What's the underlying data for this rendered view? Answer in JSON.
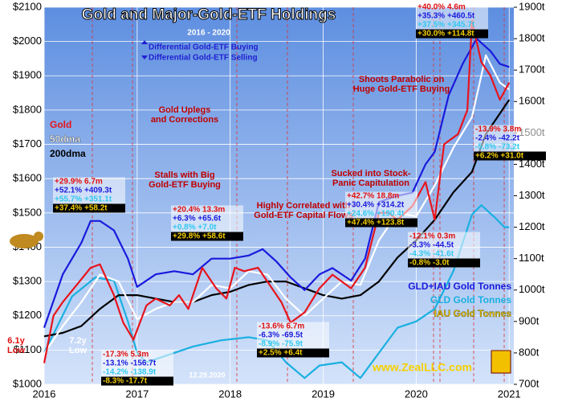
{
  "chart_data": {
    "type": "line",
    "title": "Gold and Major-Gold-ETF Holdings",
    "subtitle": "2016 - 2020",
    "grid": true,
    "xlim": [
      2016,
      2021.05
    ],
    "xticks": [
      2016,
      2017,
      2018,
      2019,
      2020,
      2021
    ],
    "ylim": [
      1000,
      2100
    ],
    "yticks": [
      {
        "value": 1000,
        "label": "$1000"
      },
      {
        "value": 1100,
        "label": "$1100"
      },
      {
        "value": 1200,
        "label": "$1200"
      },
      {
        "value": 1300,
        "label": "$1300"
      },
      {
        "value": 1400,
        "label": "$1400"
      },
      {
        "value": 1500,
        "label": "$1500"
      },
      {
        "value": 1600,
        "label": "$1600"
      },
      {
        "value": 1700,
        "label": "$1700"
      },
      {
        "value": 1800,
        "label": "$1800"
      },
      {
        "value": 1900,
        "label": "$1900"
      },
      {
        "value": 2000,
        "label": "$2000"
      },
      {
        "value": 2100,
        "label": "$2100"
      }
    ],
    "y2lim": [
      700,
      1900
    ],
    "y2ticks": [
      {
        "value": 700,
        "label": "700t"
      },
      {
        "value": 800,
        "label": "800t"
      },
      {
        "value": 900,
        "label": "900t"
      },
      {
        "value": 1000,
        "label": "1000t"
      },
      {
        "value": 1100,
        "label": "1100t"
      },
      {
        "value": 1200,
        "label": "1200t"
      },
      {
        "value": 1300,
        "label": "1300t"
      },
      {
        "value": 1400,
        "label": "1400t"
      },
      {
        "value": 1500,
        "label": "1500t"
      },
      {
        "value": 1600,
        "label": "1600t"
      },
      {
        "value": 1700,
        "label": "1700t"
      },
      {
        "value": 1800,
        "label": "1800t"
      },
      {
        "value": 1900,
        "label": "1900t"
      }
    ],
    "series": [
      {
        "name": "GLD Gold Tonnes",
        "color": "#1ab0e0",
        "axis": "y2",
        "x": [
          2016.0,
          2016.3,
          2016.55,
          2016.75,
          2016.9,
          2017.0,
          2017.1,
          2017.3,
          2017.6,
          2017.9,
          2018.2,
          2018.4,
          2018.6,
          2018.8,
          2018.96,
          2019.2,
          2019.4,
          2019.6,
          2019.8,
          2020.0,
          2020.2,
          2020.4,
          2020.6,
          2020.7,
          2020.85,
          2020.95,
          2021.0
        ],
        "values": [
          800,
          980,
          1040,
          1030,
          900,
          800,
          770,
          790,
          820,
          840,
          850,
          840,
          770,
          720,
          760,
          770,
          720,
          800,
          880,
          900,
          940,
          1060,
          1240,
          1270,
          1230,
          1200,
          1200
        ]
      },
      {
        "name": "200dma",
        "color": "#000000",
        "x": [
          2016.0,
          2016.2,
          2016.4,
          2016.6,
          2016.8,
          2017.0,
          2017.2,
          2017.4,
          2017.6,
          2017.8,
          2018.0,
          2018.2,
          2018.4,
          2018.6,
          2018.8,
          2019.0,
          2019.2,
          2019.4,
          2019.6,
          2019.8,
          2020.0,
          2020.2,
          2020.4,
          2020.6,
          2020.75,
          2020.9,
          2021.0
        ],
        "values": [
          1140,
          1150,
          1170,
          1220,
          1260,
          1260,
          1250,
          1240,
          1240,
          1260,
          1270,
          1290,
          1300,
          1300,
          1280,
          1260,
          1250,
          1260,
          1300,
          1370,
          1420,
          1480,
          1560,
          1620,
          1730,
          1790,
          1830
        ]
      },
      {
        "name": "50dma",
        "color": "#ffffff",
        "x": [
          2016.0,
          2016.2,
          2016.4,
          2016.6,
          2016.8,
          2017.0,
          2017.2,
          2017.4,
          2017.6,
          2017.8,
          2018.0,
          2018.2,
          2018.4,
          2018.6,
          2018.8,
          2019.0,
          2019.2,
          2019.4,
          2019.6,
          2019.8,
          2020.0,
          2020.2,
          2020.4,
          2020.6,
          2020.75,
          2020.9,
          2021.0
        ],
        "values": [
          1090,
          1170,
          1240,
          1320,
          1300,
          1190,
          1220,
          1240,
          1240,
          1290,
          1280,
          1330,
          1320,
          1250,
          1200,
          1250,
          1300,
          1290,
          1420,
          1500,
          1490,
          1580,
          1690,
          1780,
          1960,
          1880,
          1860
        ]
      },
      {
        "name": "GLD+IAU Gold Tonnes",
        "color": "#1a1adc",
        "axis": "y2",
        "x": [
          2016.0,
          2016.2,
          2016.4,
          2016.5,
          2016.6,
          2016.75,
          2016.9,
          2017.0,
          2017.2,
          2017.4,
          2017.6,
          2017.8,
          2018.0,
          2018.2,
          2018.35,
          2018.5,
          2018.65,
          2018.8,
          2018.96,
          2019.1,
          2019.3,
          2019.45,
          2019.6,
          2019.8,
          2019.96,
          2020.1,
          2020.2,
          2020.35,
          2020.5,
          2020.65,
          2020.8,
          2020.9,
          2021.0
        ],
        "values": [
          880,
          1050,
          1150,
          1220,
          1220,
          1190,
          1100,
          1010,
          1050,
          1060,
          1050,
          1100,
          1100,
          1110,
          1130,
          1090,
          1040,
          1000,
          1050,
          1070,
          1030,
          1100,
          1280,
          1300,
          1310,
          1400,
          1440,
          1620,
          1720,
          1800,
          1760,
          1720,
          1710
        ]
      },
      {
        "name": "Gold",
        "color": "#e8141c",
        "x": [
          2016.0,
          2016.1,
          2016.2,
          2016.35,
          2016.5,
          2016.6,
          2016.75,
          2016.85,
          2016.96,
          2017.1,
          2017.2,
          2017.35,
          2017.45,
          2017.55,
          2017.7,
          2017.85,
          2017.96,
          2018.05,
          2018.15,
          2018.3,
          2018.4,
          2018.55,
          2018.65,
          2018.8,
          2018.96,
          2019.1,
          2019.3,
          2019.45,
          2019.6,
          2019.7,
          2019.8,
          2019.96,
          2020.1,
          2020.2,
          2020.3,
          2020.45,
          2020.55,
          2020.6,
          2020.7,
          2020.8,
          2020.9,
          2021.0
        ],
        "values": [
          1062,
          1200,
          1240,
          1290,
          1340,
          1350,
          1260,
          1180,
          1130,
          1230,
          1250,
          1230,
          1260,
          1220,
          1340,
          1280,
          1250,
          1340,
          1330,
          1340,
          1300,
          1240,
          1180,
          1210,
          1280,
          1320,
          1280,
          1340,
          1500,
          1500,
          1480,
          1520,
          1590,
          1480,
          1700,
          1730,
          1800,
          2060,
          1940,
          1900,
          1830,
          1880
        ]
      }
    ],
    "extra_legend": "IAU Gold Tonnes",
    "differential": [
      "Differential Gold-ETF Buying",
      "Differential Gold-ETF Selling"
    ],
    "annotations": [
      "Gold Uplegs",
      "and Corrections",
      "Stalls with Big",
      "Gold-ETF Buying",
      "Highly Correlated with",
      "Gold-ETF Capital Flows",
      "Sucked into Stock-",
      "Panic Capitulation",
      "Shoots Parabolic on",
      "Huge Gold-ETF Buying",
      "6.1y",
      "Low",
      "7.2y",
      "Low",
      "12.29.2020",
      "www.ZealLLC.com"
    ],
    "stat_boxes": [
      [
        "+29.9% 6.7m",
        "+52.1% +409.3t",
        "+55.7% +351.1t",
        "+37.4% +58.2t"
      ],
      [
        "-17.3% 5.3m",
        "-13.1% -156.7t",
        "-14.2% -138.9t",
        "-8.3% -17.7t"
      ],
      [
        "+20.4% 13.3m",
        "+6.3% +65.6t",
        "+0.8% +7.0t",
        "+29.8% +58.6t"
      ],
      [
        "-13.6% 6.7m",
        "-6.3% -69.5t",
        "-8.9% -75.9t",
        "+2.5% +6.4t"
      ],
      [
        "+42.7% 18.8m",
        "+30.4% +314.2t",
        "+24.6% +190.4t",
        "+47.4% +123.8t"
      ],
      [
        "-12.1% 0.3m",
        "-3.3% -44.5t",
        "-4.3% -41.6t",
        "-0.8% -3.0t"
      ],
      [
        "+40.0% 4.6m",
        "+35.3% +460.5t",
        "+37.5% +345.7t",
        "+30.0% +114.8t"
      ],
      [
        "-13.9% 3.8m",
        "-2.4% -42.2t",
        "-5.8% -73.2t",
        "+6.2% +31.0t"
      ]
    ]
  }
}
